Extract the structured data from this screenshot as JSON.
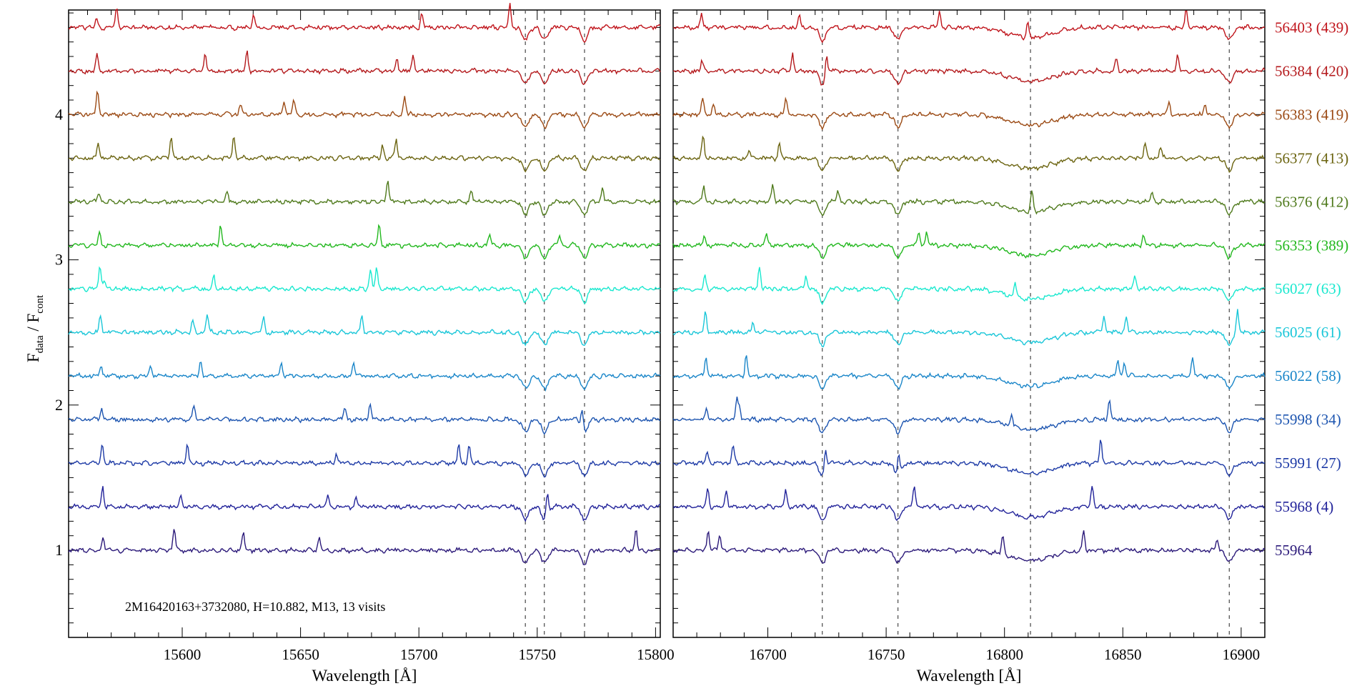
{
  "chart_data": {
    "type": "line",
    "ylabel_main": "F",
    "ylabel_sub1": "data",
    "ylabel_sep": " / F",
    "ylabel_sub2": "cont",
    "annotation": "2M16420163+3732080,    H=10.882,    M13,    13 visits",
    "ylim": [
      0.4,
      4.72
    ],
    "yticks": [
      "1",
      "2",
      "3",
      "4"
    ],
    "panels": [
      {
        "xlabel": "Wavelength [Å]",
        "xlim": [
          15552,
          15802
        ],
        "xticks": [
          "15600",
          "15650",
          "15700",
          "15750",
          "15800"
        ],
        "ref_lines": [
          15745,
          15753,
          15770
        ]
      },
      {
        "xlabel": "Wavelength [Å]",
        "xlim": [
          16660,
          16910
        ],
        "xticks": [
          "16700",
          "16750",
          "16800",
          "16850",
          "16900"
        ],
        "ref_lines": [
          16723,
          16755,
          16811,
          16895
        ]
      }
    ],
    "series": [
      {
        "name": "56403 (439)",
        "offset": 4.6,
        "color": "#c0141b"
      },
      {
        "name": "56384 (420)",
        "offset": 4.3,
        "color": "#b4191c"
      },
      {
        "name": "56383 (419)",
        "offset": 4.0,
        "color": "#9b4a14"
      },
      {
        "name": "56377 (413)",
        "offset": 3.7,
        "color": "#6b6410"
      },
      {
        "name": "56376 (412)",
        "offset": 3.4,
        "color": "#4f7a1c"
      },
      {
        "name": "56353 (389)",
        "offset": 3.1,
        "color": "#22b81e"
      },
      {
        "name": "56027 (63)",
        "offset": 2.8,
        "color": "#19e8cf"
      },
      {
        "name": "56025 (61)",
        "offset": 2.5,
        "color": "#19c6d8"
      },
      {
        "name": "56022 (58)",
        "offset": 2.2,
        "color": "#1a86c9"
      },
      {
        "name": "55998 (34)",
        "offset": 1.9,
        "color": "#1d55b0"
      },
      {
        "name": "55991 (27)",
        "offset": 1.6,
        "color": "#1d3aa6"
      },
      {
        "name": "55968 (4)",
        "offset": 1.3,
        "color": "#22239a"
      },
      {
        "name": "55964",
        "offset": 1.0,
        "color": "#2c1a7a"
      }
    ]
  }
}
